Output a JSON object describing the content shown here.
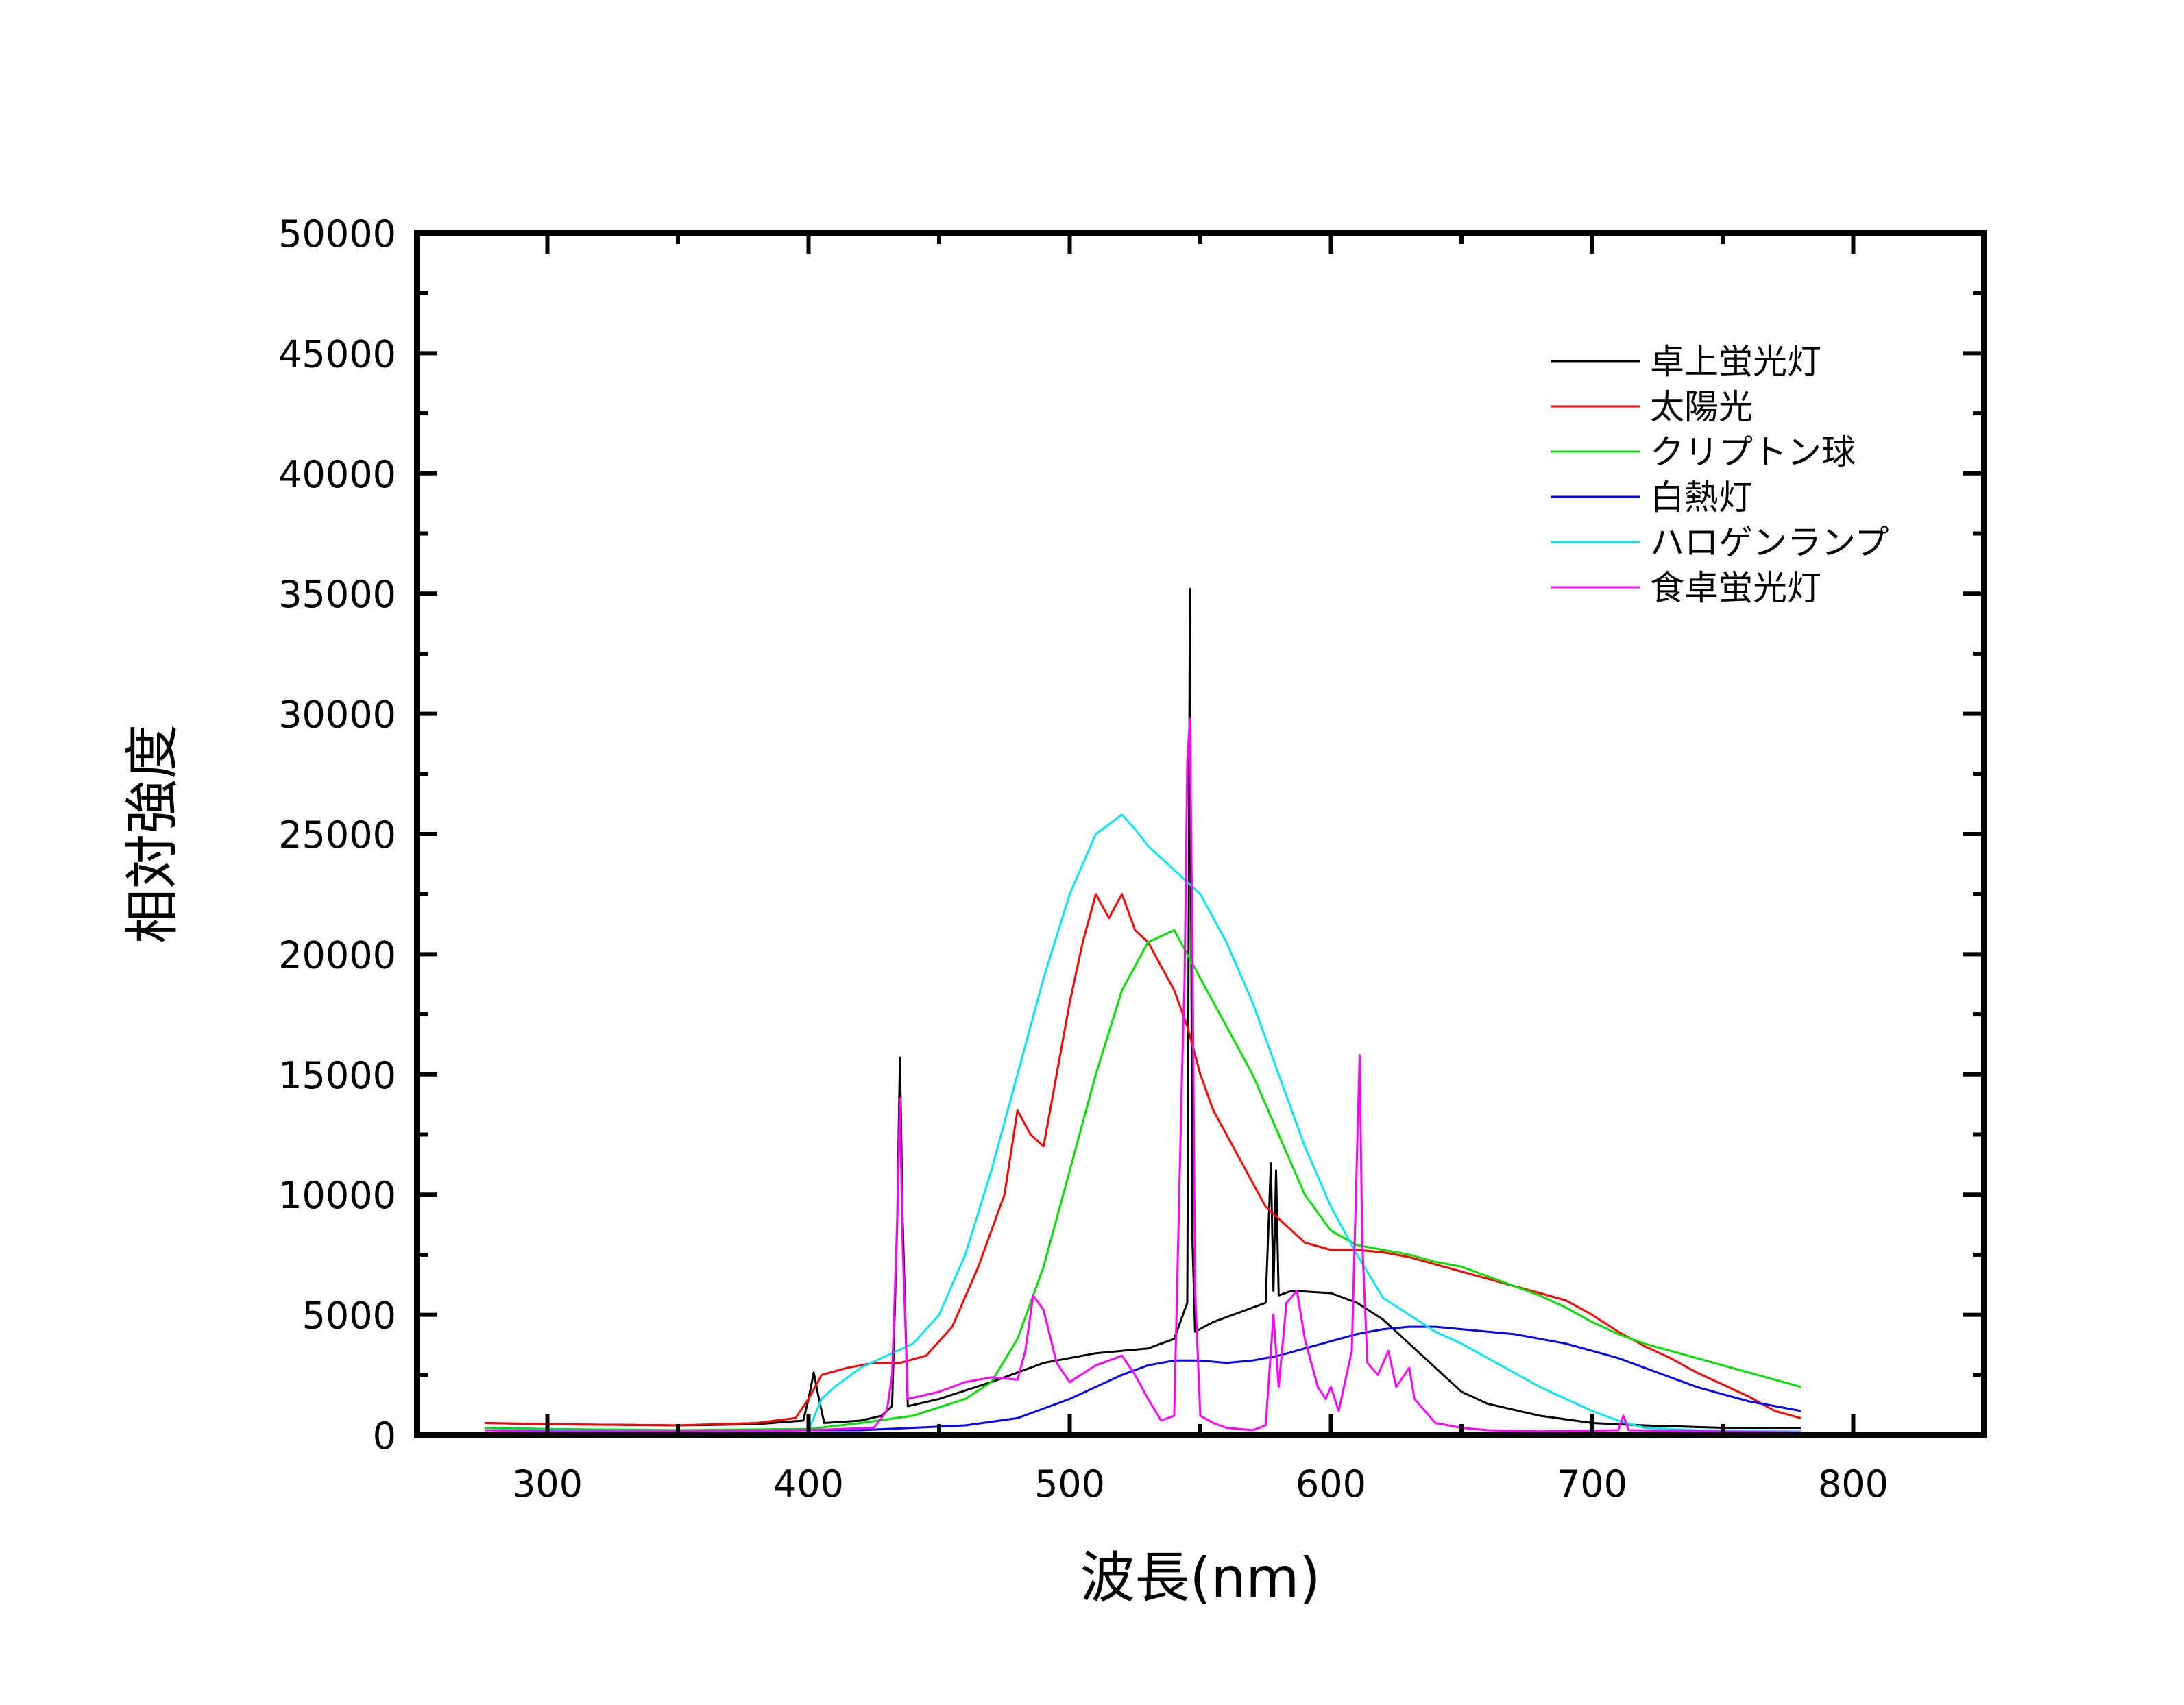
{
  "chart_data": {
    "type": "line",
    "title": "",
    "xlabel": "波長(nm)",
    "ylabel": "相対強度",
    "xlim": [
      250,
      850
    ],
    "ylim": [
      0,
      50000
    ],
    "x_ticks": [
      300,
      400,
      500,
      600,
      700,
      800
    ],
    "x_tick_labels": [
      "300",
      "400",
      "500",
      "600",
      "700",
      "800"
    ],
    "y_ticks": [
      0,
      5000,
      10000,
      15000,
      20000,
      25000,
      30000,
      35000,
      40000,
      45000,
      50000
    ],
    "y_tick_labels": [
      "0",
      "5000",
      "10000",
      "15000",
      "20000",
      "25000",
      "30000",
      "35000",
      "40000",
      "45000",
      "50000"
    ],
    "grid": false,
    "legend_position": "top-right",
    "series": [
      {
        "name": "卓上蛍光灯",
        "color": "#000000",
        "points": [
          [
            276,
            500
          ],
          [
            300,
            450
          ],
          [
            350,
            400
          ],
          [
            380,
            450
          ],
          [
            398,
            600
          ],
          [
            400,
            1500
          ],
          [
            402,
            2600
          ],
          [
            404,
            1500
          ],
          [
            406,
            500
          ],
          [
            420,
            600
          ],
          [
            428,
            800
          ],
          [
            432,
            1200
          ],
          [
            434,
            9000
          ],
          [
            435,
            15700
          ],
          [
            436,
            9000
          ],
          [
            438,
            1200
          ],
          [
            450,
            1500
          ],
          [
            470,
            2200
          ],
          [
            490,
            3000
          ],
          [
            510,
            3400
          ],
          [
            520,
            3500
          ],
          [
            530,
            3600
          ],
          [
            540,
            4000
          ],
          [
            545,
            5500
          ],
          [
            546,
            35200
          ],
          [
            547,
            8000
          ],
          [
            548,
            4300
          ],
          [
            555,
            4700
          ],
          [
            565,
            5100
          ],
          [
            575,
            5500
          ],
          [
            577,
            11300
          ],
          [
            578,
            6000
          ],
          [
            579,
            11000
          ],
          [
            580,
            5800
          ],
          [
            585,
            6000
          ],
          [
            600,
            5900
          ],
          [
            610,
            5500
          ],
          [
            620,
            4800
          ],
          [
            630,
            3800
          ],
          [
            640,
            2800
          ],
          [
            650,
            1800
          ],
          [
            660,
            1300
          ],
          [
            680,
            800
          ],
          [
            700,
            500
          ],
          [
            720,
            400
          ],
          [
            750,
            300
          ],
          [
            780,
            300
          ]
        ]
      },
      {
        "name": "太陽光",
        "color": "#ff0000",
        "points": [
          [
            276,
            500
          ],
          [
            300,
            450
          ],
          [
            350,
            400
          ],
          [
            380,
            500
          ],
          [
            395,
            700
          ],
          [
            400,
            1500
          ],
          [
            405,
            2500
          ],
          [
            415,
            2800
          ],
          [
            425,
            3000
          ],
          [
            435,
            3000
          ],
          [
            445,
            3300
          ],
          [
            455,
            4500
          ],
          [
            465,
            7000
          ],
          [
            475,
            10000
          ],
          [
            480,
            13500
          ],
          [
            485,
            12500
          ],
          [
            490,
            12000
          ],
          [
            495,
            15000
          ],
          [
            500,
            18000
          ],
          [
            505,
            20500
          ],
          [
            510,
            22500
          ],
          [
            515,
            21500
          ],
          [
            520,
            22500
          ],
          [
            525,
            21000
          ],
          [
            530,
            20500
          ],
          [
            535,
            19500
          ],
          [
            540,
            18500
          ],
          [
            545,
            17000
          ],
          [
            550,
            15000
          ],
          [
            555,
            13500
          ],
          [
            560,
            12500
          ],
          [
            565,
            11500
          ],
          [
            570,
            10500
          ],
          [
            575,
            9500
          ],
          [
            580,
            9000
          ],
          [
            585,
            8500
          ],
          [
            590,
            8000
          ],
          [
            600,
            7700
          ],
          [
            610,
            7700
          ],
          [
            620,
            7600
          ],
          [
            630,
            7400
          ],
          [
            640,
            7100
          ],
          [
            650,
            6800
          ],
          [
            660,
            6500
          ],
          [
            670,
            6200
          ],
          [
            680,
            5900
          ],
          [
            690,
            5600
          ],
          [
            700,
            5000
          ],
          [
            710,
            4300
          ],
          [
            720,
            3700
          ],
          [
            730,
            3200
          ],
          [
            740,
            2600
          ],
          [
            750,
            2100
          ],
          [
            760,
            1600
          ],
          [
            770,
            1000
          ],
          [
            780,
            700
          ]
        ]
      },
      {
        "name": "クリプトン球",
        "color": "#00dd00",
        "points": [
          [
            276,
            300
          ],
          [
            300,
            250
          ],
          [
            350,
            200
          ],
          [
            400,
            250
          ],
          [
            420,
            500
          ],
          [
            440,
            800
          ],
          [
            460,
            1500
          ],
          [
            470,
            2200
          ],
          [
            480,
            4000
          ],
          [
            490,
            7000
          ],
          [
            500,
            11000
          ],
          [
            510,
            15000
          ],
          [
            520,
            18500
          ],
          [
            530,
            20500
          ],
          [
            540,
            21000
          ],
          [
            545,
            20000
          ],
          [
            550,
            19000
          ],
          [
            560,
            17000
          ],
          [
            570,
            15000
          ],
          [
            580,
            12500
          ],
          [
            590,
            10000
          ],
          [
            600,
            8500
          ],
          [
            610,
            7900
          ],
          [
            620,
            7700
          ],
          [
            630,
            7500
          ],
          [
            640,
            7200
          ],
          [
            650,
            7000
          ],
          [
            660,
            6600
          ],
          [
            670,
            6200
          ],
          [
            680,
            5800
          ],
          [
            690,
            5300
          ],
          [
            700,
            4700
          ],
          [
            710,
            4200
          ],
          [
            720,
            3800
          ],
          [
            730,
            3500
          ],
          [
            740,
            3200
          ],
          [
            750,
            2900
          ],
          [
            760,
            2600
          ],
          [
            770,
            2300
          ],
          [
            780,
            2000
          ]
        ]
      },
      {
        "name": "白熱灯",
        "color": "#0000ff",
        "points": [
          [
            276,
            200
          ],
          [
            300,
            200
          ],
          [
            350,
            150
          ],
          [
            400,
            200
          ],
          [
            420,
            200
          ],
          [
            440,
            300
          ],
          [
            460,
            400
          ],
          [
            480,
            700
          ],
          [
            500,
            1500
          ],
          [
            510,
            2000
          ],
          [
            520,
            2500
          ],
          [
            530,
            2900
          ],
          [
            540,
            3100
          ],
          [
            550,
            3100
          ],
          [
            560,
            3000
          ],
          [
            570,
            3100
          ],
          [
            580,
            3300
          ],
          [
            590,
            3600
          ],
          [
            600,
            3900
          ],
          [
            610,
            4200
          ],
          [
            620,
            4400
          ],
          [
            630,
            4500
          ],
          [
            640,
            4500
          ],
          [
            650,
            4400
          ],
          [
            660,
            4300
          ],
          [
            670,
            4200
          ],
          [
            680,
            4000
          ],
          [
            690,
            3800
          ],
          [
            700,
            3500
          ],
          [
            710,
            3200
          ],
          [
            720,
            2800
          ],
          [
            730,
            2400
          ],
          [
            740,
            2000
          ],
          [
            750,
            1700
          ],
          [
            760,
            1400
          ],
          [
            770,
            1200
          ],
          [
            780,
            1000
          ]
        ]
      },
      {
        "name": "ハロゲンランプ",
        "color": "#00e5ee",
        "points": [
          [
            276,
            200
          ],
          [
            300,
            200
          ],
          [
            350,
            150
          ],
          [
            400,
            200
          ],
          [
            405,
            1500
          ],
          [
            410,
            2000
          ],
          [
            420,
            2800
          ],
          [
            430,
            3300
          ],
          [
            440,
            3800
          ],
          [
            450,
            5000
          ],
          [
            460,
            7500
          ],
          [
            470,
            11000
          ],
          [
            480,
            15000
          ],
          [
            490,
            19000
          ],
          [
            500,
            22500
          ],
          [
            510,
            25000
          ],
          [
            520,
            25800
          ],
          [
            525,
            25200
          ],
          [
            530,
            24500
          ],
          [
            540,
            23500
          ],
          [
            550,
            22500
          ],
          [
            560,
            20500
          ],
          [
            570,
            18000
          ],
          [
            580,
            15000
          ],
          [
            590,
            12000
          ],
          [
            600,
            9500
          ],
          [
            610,
            7500
          ],
          [
            620,
            5700
          ],
          [
            630,
            5000
          ],
          [
            640,
            4300
          ],
          [
            650,
            3800
          ],
          [
            660,
            3200
          ],
          [
            670,
            2600
          ],
          [
            680,
            2000
          ],
          [
            690,
            1500
          ],
          [
            700,
            1000
          ],
          [
            710,
            600
          ],
          [
            720,
            300
          ],
          [
            740,
            200
          ],
          [
            780,
            150
          ]
        ]
      },
      {
        "name": "食卓蛍光灯",
        "color": "#ff00ff",
        "points": [
          [
            276,
            200
          ],
          [
            300,
            150
          ],
          [
            350,
            150
          ],
          [
            400,
            200
          ],
          [
            425,
            300
          ],
          [
            430,
            1000
          ],
          [
            432,
            2500
          ],
          [
            434,
            9000
          ],
          [
            435,
            14000
          ],
          [
            436,
            8000
          ],
          [
            438,
            1500
          ],
          [
            450,
            1800
          ],
          [
            460,
            2200
          ],
          [
            470,
            2400
          ],
          [
            480,
            2300
          ],
          [
            483,
            3500
          ],
          [
            486,
            5800
          ],
          [
            490,
            5200
          ],
          [
            495,
            3000
          ],
          [
            500,
            2200
          ],
          [
            510,
            2900
          ],
          [
            520,
            3300
          ],
          [
            525,
            2500
          ],
          [
            530,
            1500
          ],
          [
            535,
            600
          ],
          [
            540,
            800
          ],
          [
            543,
            15000
          ],
          [
            544,
            19000
          ],
          [
            545,
            28000
          ],
          [
            546,
            29800
          ],
          [
            547,
            20000
          ],
          [
            548,
            6000
          ],
          [
            550,
            800
          ],
          [
            555,
            500
          ],
          [
            560,
            300
          ],
          [
            570,
            200
          ],
          [
            575,
            400
          ],
          [
            578,
            5000
          ],
          [
            580,
            2000
          ],
          [
            583,
            5500
          ],
          [
            587,
            6000
          ],
          [
            590,
            4000
          ],
          [
            595,
            2000
          ],
          [
            598,
            1500
          ],
          [
            600,
            2000
          ],
          [
            603,
            1000
          ],
          [
            608,
            3500
          ],
          [
            611,
            15800
          ],
          [
            612,
            8000
          ],
          [
            614,
            3000
          ],
          [
            618,
            2500
          ],
          [
            622,
            3500
          ],
          [
            625,
            2000
          ],
          [
            630,
            2800
          ],
          [
            632,
            1500
          ],
          [
            640,
            500
          ],
          [
            650,
            300
          ],
          [
            660,
            200
          ],
          [
            680,
            150
          ],
          [
            710,
            200
          ],
          [
            712,
            800
          ],
          [
            714,
            200
          ],
          [
            780,
            100
          ]
        ]
      }
    ]
  }
}
